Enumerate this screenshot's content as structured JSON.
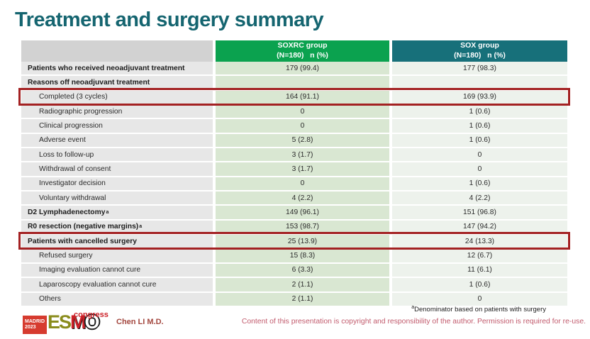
{
  "slide": {
    "title": "Treatment and surgery summary",
    "author": "Chen LI M.D.",
    "copyright": "Content of this presentation is copyright and responsibility of the author.  Permission is required for re-use.",
    "footnote": {
      "marker": "a",
      "text": "Denominator based on patients with surgery"
    }
  },
  "logo": {
    "city": "MADRID",
    "year": "2023",
    "esmo_es": "ES",
    "esmo_m": "M",
    "esmo_o": "O",
    "congress": "congress"
  },
  "colors": {
    "title_teal": "#156570",
    "header_green": "#0ba24f",
    "header_teal": "#17707a",
    "label_cell_gray": "#e7e7e7",
    "soxrc_cell_green": "#d9e7d2",
    "sox_cell_pale": "#edf2ec",
    "highlight_red": "#a32122",
    "copyright_rose": "#c25b6d",
    "author_brick": "#a3473f"
  },
  "table": {
    "header": {
      "soxrc_line1": "SOXRC group",
      "soxrc_line2": "(N=180)   n (%)",
      "sox_line1": "SOX group",
      "sox_line2": "(N=180)   n (%)"
    },
    "rows": [
      {
        "label": "Patients who received neoadjuvant treatment",
        "bold": true,
        "indent": false,
        "sup": "",
        "soxrc": "179 (99.4)",
        "sox": "177 (98.3)",
        "highlight": false
      },
      {
        "label": "Reasons off neoadjuvant treatment",
        "bold": true,
        "indent": false,
        "sup": "",
        "soxrc": "",
        "sox": "",
        "highlight": false
      },
      {
        "label": "Completed (3 cycles)",
        "bold": false,
        "indent": true,
        "sup": "",
        "soxrc": "164 (91.1)",
        "sox": "169 (93.9)",
        "highlight": true
      },
      {
        "label": "Radiographic progression",
        "bold": false,
        "indent": true,
        "sup": "",
        "soxrc": "0",
        "sox": "1 (0.6)",
        "highlight": false
      },
      {
        "label": "Clinical progression",
        "bold": false,
        "indent": true,
        "sup": "",
        "soxrc": "0",
        "sox": "1 (0.6)",
        "highlight": false
      },
      {
        "label": "Adverse event",
        "bold": false,
        "indent": true,
        "sup": "",
        "soxrc": "5 (2.8)",
        "sox": "1 (0.6)",
        "highlight": false
      },
      {
        "label": "Loss to follow-up",
        "bold": false,
        "indent": true,
        "sup": "",
        "soxrc": "3 (1.7)",
        "sox": "0",
        "highlight": false
      },
      {
        "label": "Withdrawal of consent",
        "bold": false,
        "indent": true,
        "sup": "",
        "soxrc": "3 (1.7)",
        "sox": "0",
        "highlight": false
      },
      {
        "label": "Investigator decision",
        "bold": false,
        "indent": true,
        "sup": "",
        "soxrc": "0",
        "sox": "1 (0.6)",
        "highlight": false
      },
      {
        "label": "Voluntary withdrawal",
        "bold": false,
        "indent": true,
        "sup": "",
        "soxrc": "4 (2.2)",
        "sox": "4 (2.2)",
        "highlight": false
      },
      {
        "label": "D2 Lymphadenectomy",
        "bold": true,
        "indent": false,
        "sup": "a",
        "soxrc": "149 (96.1)",
        "sox": "151 (96.8)",
        "highlight": false
      },
      {
        "label": "R0 resection (negative margins)",
        "bold": true,
        "indent": false,
        "sup": "a",
        "soxrc": "153 (98.7)",
        "sox": "147 (94.2)",
        "highlight": false
      },
      {
        "label": "Patients with cancelled surgery",
        "bold": true,
        "indent": false,
        "sup": "",
        "soxrc": "25 (13.9)",
        "sox": "24 (13.3)",
        "highlight": true
      },
      {
        "label": "Refused surgery",
        "bold": false,
        "indent": true,
        "sup": "",
        "soxrc": "15 (8.3)",
        "sox": "12 (6.7)",
        "highlight": false
      },
      {
        "label": "Imaging evaluation cannot cure",
        "bold": false,
        "indent": true,
        "sup": "",
        "soxrc": "6 (3.3)",
        "sox": "11 (6.1)",
        "highlight": false
      },
      {
        "label": "Laparoscopy evaluation cannot cure",
        "bold": false,
        "indent": true,
        "sup": "",
        "soxrc": "2 (1.1)",
        "sox": "1 (0.6)",
        "highlight": false
      },
      {
        "label": "Others",
        "bold": false,
        "indent": true,
        "sup": "",
        "soxrc": "2 (1.1)",
        "sox": "0",
        "highlight": false
      }
    ]
  }
}
